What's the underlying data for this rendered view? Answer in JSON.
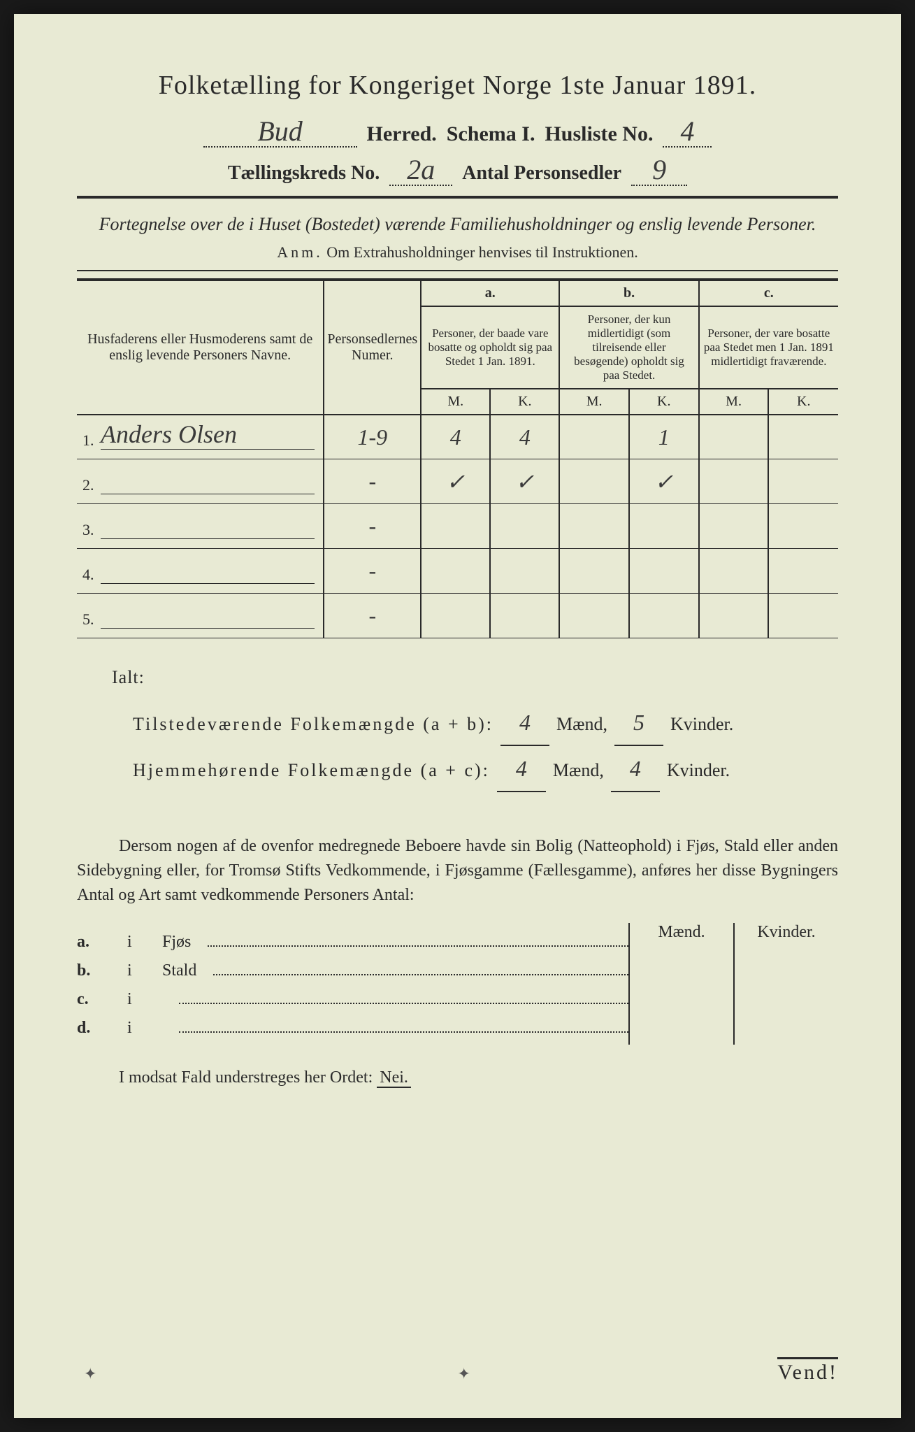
{
  "colors": {
    "paper": "#e8ead4",
    "ink": "#2a2a2a",
    "handwriting": "#3a3a3a",
    "background": "#1a1a1a"
  },
  "title": "Folketælling for Kongeriget Norge 1ste Januar 1891.",
  "line2": {
    "herred_value": "Bud",
    "herred_label": "Herred.",
    "schema": "Schema I.",
    "husliste_label": "Husliste No.",
    "husliste_value": "4"
  },
  "line3": {
    "kreds_label": "Tællingskreds No.",
    "kreds_value": "2a",
    "antal_label": "Antal Personsedler",
    "antal_value": "9"
  },
  "subtitle": "Fortegnelse over de i Huset (Bostedet) værende Familiehusholdninger og enslig levende Personer.",
  "anm_lead": "Anm.",
  "anm_text": "Om Extrahusholdninger henvises til Instruktionen.",
  "table": {
    "head_name": "Husfaderens eller Husmoderens samt de enslig levende Personers Navne.",
    "head_num": "Personsedlernes Numer.",
    "head_a_top": "a.",
    "head_a": "Personer, der baade vare bosatte og opholdt sig paa Stedet 1 Jan. 1891.",
    "head_b_top": "b.",
    "head_b": "Personer, der kun midlertidigt (som tilreisende eller besøgende) opholdt sig paa Stedet.",
    "head_c_top": "c.",
    "head_c": "Personer, der vare bosatte paa Stedet men 1 Jan. 1891 midlertidigt fraværende.",
    "mk_m": "M.",
    "mk_k": "K.",
    "rows": [
      {
        "n": "1.",
        "name": "Anders Olsen",
        "num": "1-9",
        "a_m": "4",
        "a_k": "4",
        "b_m": "",
        "b_k": "1",
        "c_m": "",
        "c_k": ""
      },
      {
        "n": "2.",
        "name": "",
        "num": "-",
        "a_m": "✓",
        "a_k": "✓",
        "b_m": "",
        "b_k": "✓",
        "c_m": "",
        "c_k": ""
      },
      {
        "n": "3.",
        "name": "",
        "num": "-",
        "a_m": "",
        "a_k": "",
        "b_m": "",
        "b_k": "",
        "c_m": "",
        "c_k": ""
      },
      {
        "n": "4.",
        "name": "",
        "num": "-",
        "a_m": "",
        "a_k": "",
        "b_m": "",
        "b_k": "",
        "c_m": "",
        "c_k": ""
      },
      {
        "n": "5.",
        "name": "",
        "num": "-",
        "a_m": "",
        "a_k": "",
        "b_m": "",
        "b_k": "",
        "c_m": "",
        "c_k": ""
      }
    ]
  },
  "totals": {
    "ialt": "Ialt:",
    "line1_label": "Tilstedeværende Folkemængde (a + b):",
    "line2_label": "Hjemmehørende Folkemængde (a + c):",
    "maend": "Mænd,",
    "kvinder": "Kvinder.",
    "v1m": "4",
    "v1k": "5",
    "v2m": "4",
    "v2k": "4"
  },
  "para": "Dersom nogen af de ovenfor medregnede Beboere havde sin Bolig (Natteophold) i Fjøs, Stald eller anden Sidebygning eller, for Tromsø Stifts Vedkommende, i Fjøsgamme (Fællesgamme), anføres her disse Bygningers Antal og Art samt vedkommende Personers Antal:",
  "buildings": {
    "hdr_m": "Mænd.",
    "hdr_k": "Kvinder.",
    "rows": [
      {
        "lbl": "a.",
        "i": "i",
        "txt": "Fjøs"
      },
      {
        "lbl": "b.",
        "i": "i",
        "txt": "Stald"
      },
      {
        "lbl": "c.",
        "i": "i",
        "txt": ""
      },
      {
        "lbl": "d.",
        "i": "i",
        "txt": ""
      }
    ]
  },
  "modsat": "I modsat Fald understreges her Ordet:",
  "nei": "Nei.",
  "vend": "Vend!"
}
